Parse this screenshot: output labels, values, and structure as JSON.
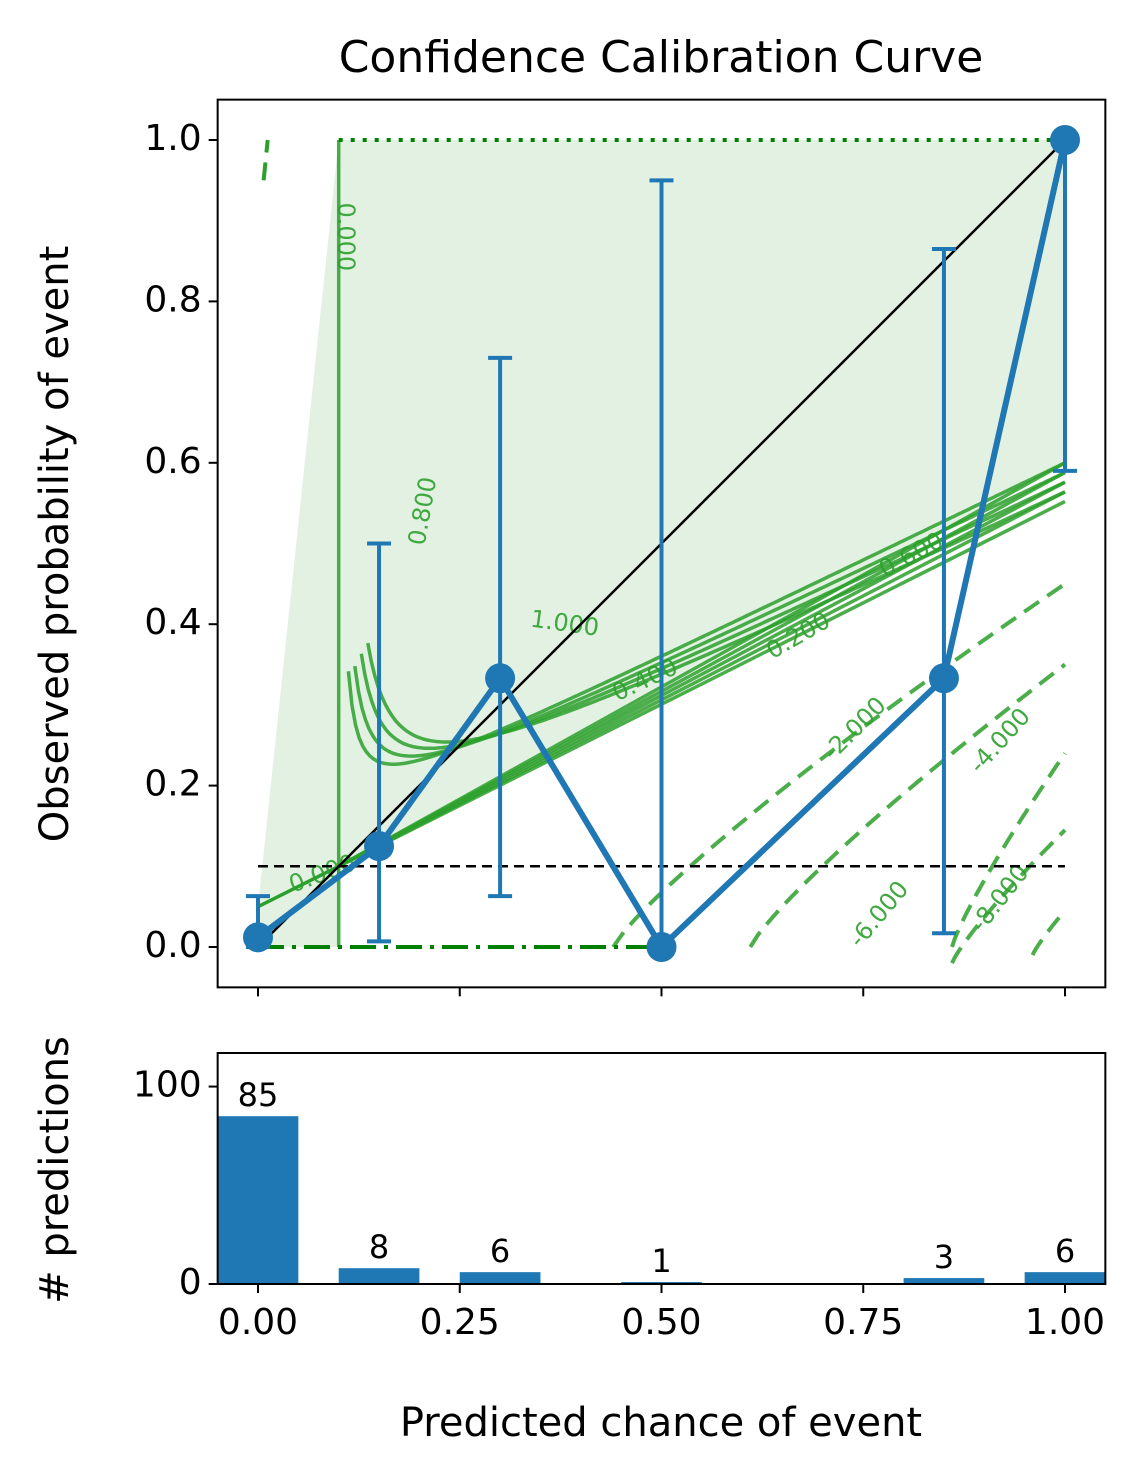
{
  "chart_data": [
    {
      "type": "line",
      "title": "Confidence Calibration Curve",
      "xlabel": "",
      "ylabel": "Observed probability of event",
      "xlim": [
        -0.05,
        1.05
      ],
      "ylim": [
        -0.05,
        1.05
      ],
      "y_ticks": [
        "0.0",
        "0.2",
        "0.4",
        "0.6",
        "0.8",
        "1.0"
      ],
      "grid": false,
      "series": [
        {
          "x": [
            0.0,
            0.15,
            0.3,
            0.5,
            0.85,
            1.0
          ],
          "y": [
            0.012,
            0.125,
            0.333,
            0.0,
            0.333,
            1.0
          ],
          "error_low": [
            0.0,
            0.007,
            0.063,
            0.0,
            0.017,
            0.59
          ],
          "error_high": [
            0.063,
            0.5,
            0.73,
            0.95,
            0.865,
            1.0
          ],
          "color": "#1f77b4"
        }
      ],
      "reference_lines": [
        {
          "kind": "diagonal",
          "from": [
            0,
            0
          ],
          "to": [
            1,
            1
          ],
          "color": "#000000",
          "style": "solid"
        },
        {
          "kind": "horizontal",
          "y": 0.1,
          "x_range": [
            0,
            1
          ],
          "color": "#000000",
          "style": "dashed"
        }
      ],
      "contour_labels": [
        "0.000",
        "0.800",
        "1.000",
        "0.400",
        "0.200",
        "0.600",
        "0.000",
        "-2.000",
        "-4.000",
        "-6.000",
        "-8.000"
      ],
      "contour_color": "#2ca02c",
      "shade_color": "#e3f1e3"
    },
    {
      "type": "bar",
      "xlabel": "Predicted chance of event",
      "ylabel": "# predictions",
      "x_ticks": [
        "0.00",
        "0.25",
        "0.50",
        "0.75",
        "1.00"
      ],
      "y_ticks": [
        "0",
        "100"
      ],
      "xlim": [
        -0.05,
        1.05
      ],
      "ylim": [
        0,
        117
      ],
      "bar_width": 0.1,
      "bars": [
        {
          "x": 0.0,
          "value": 85,
          "label": "85"
        },
        {
          "x": 0.15,
          "value": 8,
          "label": "8"
        },
        {
          "x": 0.3,
          "value": 6,
          "label": "6"
        },
        {
          "x": 0.5,
          "value": 1,
          "label": "1"
        },
        {
          "x": 0.85,
          "value": 3,
          "label": "3"
        },
        {
          "x": 1.0,
          "value": 6,
          "label": "6"
        }
      ],
      "color": "#1f77b4"
    }
  ]
}
